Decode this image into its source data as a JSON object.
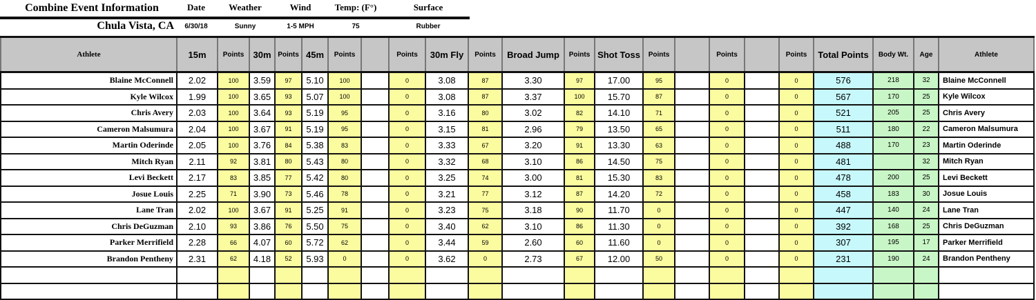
{
  "info": {
    "title": "Combine Event Information",
    "labels": [
      "Date",
      "Weather",
      "Wind",
      "Temp: (F°)",
      "Surface"
    ],
    "location": "Chula Vista, CA",
    "values": [
      "6/30/18",
      "Sunny",
      "1-5 MPH",
      "75",
      "Rubber"
    ]
  },
  "headers": [
    "Athlete",
    "15m",
    "Points",
    "30m",
    "Points",
    "45m",
    "Points",
    "",
    "Points",
    "30m Fly",
    "Points",
    "Broad Jump",
    "Points",
    "Shot Toss",
    "Points",
    "",
    "Points",
    "",
    "Points",
    "Total Points",
    "Body Wt.",
    "Age",
    "Athlete"
  ],
  "rows": [
    [
      "Blaine McConnell",
      "2.02",
      "100",
      "3.59",
      "97",
      "5.10",
      "100",
      "",
      "0",
      "3.08",
      "87",
      "3.30",
      "97",
      "17.00",
      "95",
      "",
      "0",
      "",
      "0",
      "576",
      "218",
      "32",
      "Blaine McConnell"
    ],
    [
      "Kyle Wilcox",
      "1.99",
      "100",
      "3.65",
      "93",
      "5.07",
      "100",
      "",
      "0",
      "3.08",
      "87",
      "3.37",
      "100",
      "15.70",
      "87",
      "",
      "0",
      "",
      "0",
      "567",
      "170",
      "25",
      "Kyle Wilcox"
    ],
    [
      "Chris Avery",
      "2.03",
      "100",
      "3.64",
      "93",
      "5.19",
      "95",
      "",
      "0",
      "3.16",
      "80",
      "3.02",
      "82",
      "14.10",
      "71",
      "",
      "0",
      "",
      "0",
      "521",
      "205",
      "25",
      "Chris Avery"
    ],
    [
      "Cameron Malsumura",
      "2.04",
      "100",
      "3.67",
      "91",
      "5.19",
      "95",
      "",
      "0",
      "3.15",
      "81",
      "2.96",
      "79",
      "13.50",
      "65",
      "",
      "0",
      "",
      "0",
      "511",
      "180",
      "22",
      "Cameron Malsumura"
    ],
    [
      "Martin Oderinde",
      "2.05",
      "100",
      "3.76",
      "84",
      "5.38",
      "83",
      "",
      "0",
      "3.33",
      "67",
      "3.20",
      "91",
      "13.30",
      "63",
      "",
      "0",
      "",
      "0",
      "488",
      "170",
      "23",
      "Martin Oderinde"
    ],
    [
      "Mitch Ryan",
      "2.11",
      "92",
      "3.81",
      "80",
      "5.43",
      "80",
      "",
      "0",
      "3.32",
      "68",
      "3.10",
      "86",
      "14.50",
      "75",
      "",
      "0",
      "",
      "0",
      "481",
      "",
      "32",
      "Mitch Ryan"
    ],
    [
      "Levi Beckett",
      "2.17",
      "83",
      "3.85",
      "77",
      "5.42",
      "80",
      "",
      "0",
      "3.25",
      "74",
      "3.00",
      "81",
      "15.30",
      "83",
      "",
      "0",
      "",
      "0",
      "478",
      "200",
      "25",
      "Levi Beckett"
    ],
    [
      "Josue Louis",
      "2.25",
      "71",
      "3.90",
      "73",
      "5.46",
      "78",
      "",
      "0",
      "3.21",
      "77",
      "3.12",
      "87",
      "14.20",
      "72",
      "",
      "0",
      "",
      "0",
      "458",
      "183",
      "30",
      "Josue Louis"
    ],
    [
      "Lane Tran",
      "2.02",
      "100",
      "3.67",
      "91",
      "5.25",
      "91",
      "",
      "0",
      "3.23",
      "75",
      "3.18",
      "90",
      "11.70",
      "0",
      "",
      "0",
      "",
      "0",
      "447",
      "140",
      "24",
      "Lane Tran"
    ],
    [
      "Chris DeGuzman",
      "2.10",
      "93",
      "3.86",
      "76",
      "5.50",
      "75",
      "",
      "0",
      "3.40",
      "62",
      "3.10",
      "86",
      "11.30",
      "0",
      "",
      "0",
      "",
      "0",
      "392",
      "168",
      "25",
      "Chris DeGuzman"
    ],
    [
      "Parker Merrifield",
      "2.28",
      "66",
      "4.07",
      "60",
      "5.72",
      "62",
      "",
      "0",
      "3.44",
      "59",
      "2.60",
      "60",
      "11.60",
      "0",
      "",
      "0",
      "",
      "0",
      "307",
      "195",
      "17",
      "Parker Merrifield"
    ],
    [
      "Brandon Pentheny",
      "2.31",
      "62",
      "4.18",
      "52",
      "5.93",
      "0",
      "",
      "0",
      "3.62",
      "0",
      "2.73",
      "67",
      "12.00",
      "50",
      "",
      "0",
      "",
      "0",
      "231",
      "190",
      "24",
      "Brandon Pentheny"
    ],
    [
      "",
      "",
      "",
      "",
      "",
      "",
      "",
      "",
      "",
      "",
      "",
      "",
      "",
      "",
      "",
      "",
      "",
      "",
      "",
      "",
      "",
      "",
      ""
    ],
    [
      "",
      "",
      "",
      "",
      "",
      "",
      "",
      "",
      "",
      "",
      "",
      "",
      "",
      "",
      "",
      "",
      "",
      "",
      "",
      "",
      "",
      "",
      ""
    ]
  ],
  "colors": {
    "points": "#fbfb9f",
    "total": "#c7f8fb",
    "body": "#c9f6c6",
    "header": "#c6c6c6"
  }
}
